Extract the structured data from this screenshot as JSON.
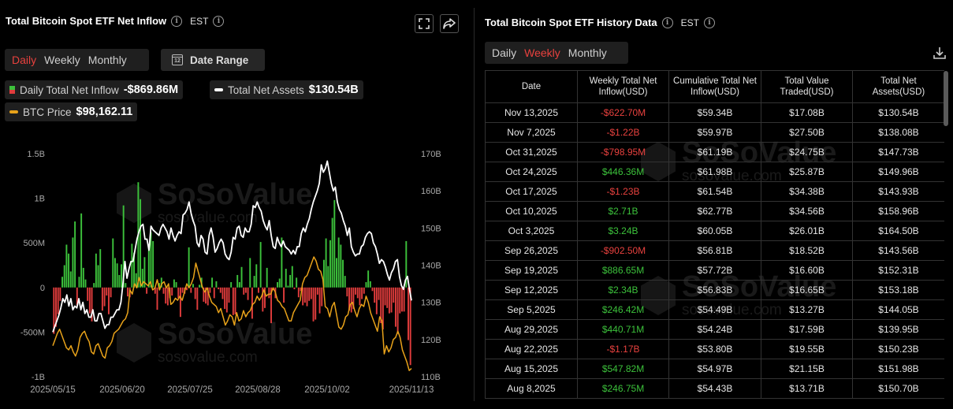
{
  "left_panel": {
    "title": "Total Bitcoin Spot ETF Net Inflow",
    "timezone": "EST",
    "period_tabs": [
      {
        "label": "Daily",
        "active": true
      },
      {
        "label": "Weekly",
        "active": false
      },
      {
        "label": "Monthly",
        "active": false
      }
    ],
    "date_range_label": "Date Range",
    "date_range_icon_text": "12",
    "legend": {
      "inflow": {
        "label": "Daily Total Net Inflow",
        "value": "-$869.86M"
      },
      "assets": {
        "label": "Total Net Assets",
        "value": "$130.54B"
      },
      "btc": {
        "label": "BTC Price",
        "value": "$98,162.11"
      }
    },
    "icons": [
      "expand-icon",
      "share-icon",
      "info-icon"
    ]
  },
  "right_panel": {
    "title": "Total Bitcoin Spot ETF History Data",
    "timezone": "EST",
    "period_tabs": [
      {
        "label": "Daily",
        "active": false
      },
      {
        "label": "Weekly",
        "active": true
      },
      {
        "label": "Monthly",
        "active": false
      }
    ],
    "columns": [
      "Date",
      "Weekly Total Net Inflow(USD)",
      "Cumulative Total Net Inflow(USD)",
      "Total Value Traded(USD)",
      "Total Net Assets(USD)"
    ],
    "rows": [
      [
        "Nov 13,2025",
        "-$622.70M",
        "$59.34B",
        "$17.08B",
        "$130.54B"
      ],
      [
        "Nov 7,2025",
        "-$1.22B",
        "$59.97B",
        "$27.50B",
        "$138.08B"
      ],
      [
        "Oct 31,2025",
        "-$798.95M",
        "$61.19B",
        "$24.75B",
        "$147.73B"
      ],
      [
        "Oct 24,2025",
        "$446.36M",
        "$61.98B",
        "$25.87B",
        "$149.96B"
      ],
      [
        "Oct 17,2025",
        "-$1.23B",
        "$61.54B",
        "$34.38B",
        "$143.93B"
      ],
      [
        "Oct 10,2025",
        "$2.71B",
        "$62.77B",
        "$34.56B",
        "$158.96B"
      ],
      [
        "Oct 3,2025",
        "$3.24B",
        "$60.05B",
        "$26.01B",
        "$164.50B"
      ],
      [
        "Sep 26,2025",
        "-$902.50M",
        "$56.81B",
        "$18.52B",
        "$143.56B"
      ],
      [
        "Sep 19,2025",
        "$886.65M",
        "$57.72B",
        "$16.60B",
        "$152.31B"
      ],
      [
        "Sep 12,2025",
        "$2.34B",
        "$56.83B",
        "$16.65B",
        "$153.18B"
      ],
      [
        "Sep 5,2025",
        "$246.42M",
        "$54.49B",
        "$13.27B",
        "$144.05B"
      ],
      [
        "Aug 29,2025",
        "$440.71M",
        "$54.24B",
        "$17.59B",
        "$139.95B"
      ],
      [
        "Aug 22,2025",
        "-$1.17B",
        "$53.80B",
        "$19.55B",
        "$150.23B"
      ],
      [
        "Aug 15,2025",
        "$547.82M",
        "$54.97B",
        "$21.15B",
        "$151.98B"
      ],
      [
        "Aug 8,2025",
        "$246.75M",
        "$54.43B",
        "$13.71B",
        "$150.70B"
      ]
    ],
    "icons": [
      "download-icon",
      "info-icon"
    ]
  },
  "watermark": {
    "brand": "SoSoValue",
    "url": "sosovalue.com"
  },
  "colors": {
    "positive": "#3cc13b",
    "negative": "#e03c3c",
    "assets_line": "#ffffff",
    "btc_line": "#e8a21a",
    "active_tab": "#e8413e"
  },
  "chart_data": {
    "type": "bar",
    "x_ticks": [
      "2025/05/15",
      "2025/06/20",
      "2025/07/25",
      "2025/08/28",
      "2025/10/02",
      "2025/11/13"
    ],
    "y_left_ticks": [
      "1.5B",
      "1B",
      "500M",
      "0",
      "-500M",
      "-1B"
    ],
    "y_left_range": [
      -1000,
      1500
    ],
    "y_right_ticks": [
      "170B",
      "160B",
      "150B",
      "140B",
      "130B",
      "120B",
      "110B"
    ],
    "y_right_range": [
      110,
      170
    ],
    "series": [
      {
        "name": "Daily Total Net Inflow",
        "unit": "M USD",
        "values": [
          -520,
          -440,
          -300,
          -150,
          120,
          250,
          480,
          380,
          180,
          560,
          740,
          -200,
          120,
          830,
          220,
          90,
          -150,
          -290,
          -380,
          50,
          380,
          250,
          430,
          -260,
          -210,
          -90,
          -300,
          -110,
          550,
          330,
          270,
          140,
          260,
          920,
          50,
          -100,
          -110,
          490,
          390,
          160,
          1180,
          990,
          210,
          340,
          -70,
          450,
          620,
          520,
          -70,
          -250,
          50,
          110,
          -70,
          -180,
          -200,
          -120,
          -90,
          90,
          60,
          -120,
          -330,
          -60,
          -70,
          -30,
          450,
          -60,
          40,
          -130,
          -250,
          30,
          110,
          -160,
          -180,
          -200,
          -60,
          110,
          -120,
          70,
          -20,
          -60,
          -130,
          -240,
          -280,
          -170,
          60,
          -310,
          -300,
          140,
          60,
          230,
          -80,
          -60,
          -140,
          330,
          -350,
          130,
          260,
          -60,
          510,
          -270,
          -230,
          220,
          -120,
          -400,
          -30,
          -120,
          60,
          100,
          560,
          -170,
          210,
          20,
          140,
          240,
          -20,
          110,
          -110,
          -40,
          -200,
          -170,
          -210,
          -150,
          -130,
          -380,
          -360,
          -80,
          -290,
          -210,
          310,
          550,
          240,
          530,
          780,
          980,
          330,
          560,
          480,
          310,
          130,
          -100,
          -260,
          -280,
          -240,
          -80,
          -120,
          -200,
          -130,
          -70,
          60,
          190,
          70,
          -40,
          -170,
          -300,
          -140,
          -400,
          -470,
          -200,
          -230,
          -290,
          -280,
          -170,
          -440,
          -520,
          -290,
          -270,
          -270,
          520,
          -590,
          -870
        ]
      },
      {
        "name": "Total Net Assets",
        "unit": "B USD",
        "values": [
          122,
          123.5,
          125,
          126.5,
          128.5,
          131,
          130,
          132,
          129,
          131,
          128,
          129,
          128.5,
          131,
          128,
          130,
          127,
          128,
          126,
          126,
          128,
          125,
          125,
          127,
          127,
          125,
          123,
          124,
          124,
          126,
          126,
          127,
          128,
          128,
          130,
          135,
          141,
          136.5,
          139,
          141,
          141,
          144,
          147,
          149,
          150.5,
          151,
          147,
          147,
          144,
          150.5,
          149.5,
          149,
          148.5,
          148,
          150,
          151,
          150,
          149,
          147,
          150,
          148,
          146.5,
          148,
          149,
          148.5,
          153.5,
          154,
          155,
          157,
          154,
          152,
          150.5,
          146,
          145,
          148,
          147,
          143.5,
          143,
          148,
          150,
          147.5,
          143.5,
          144.5,
          146,
          147,
          146,
          143,
          142,
          141.5,
          143.5,
          147.5,
          147,
          150,
          150.5,
          148,
          147.5,
          150,
          149,
          149,
          151,
          156,
          155.5,
          157,
          155.5,
          154.5,
          152,
          150.5,
          149.5,
          152,
          148,
          145,
          144.5,
          147.5,
          146,
          145,
          146.5,
          145,
          144.5,
          144,
          143,
          144,
          143,
          145,
          145,
          148.5,
          150,
          149,
          151,
          152.5,
          155,
          157,
          158.5,
          160,
          162,
          167,
          165,
          166,
          168,
          165,
          162,
          160,
          161,
          157,
          155,
          154,
          152,
          150.5,
          148,
          150,
          145,
          143.5,
          142.5,
          143,
          143,
          145,
          145.5,
          147.5,
          148.5,
          149,
          148.5,
          146,
          145,
          143,
          140.5,
          141.5,
          141,
          139.5,
          137.5,
          136,
          138,
          139,
          141,
          141.5,
          137,
          134.5,
          133.5,
          136,
          137,
          133.5,
          130.5
        ]
      },
      {
        "name": "BTC Price",
        "unit": "USD",
        "values": [
          103500,
          105000,
          106500,
          107500,
          106000,
          104500,
          103000,
          102500,
          103500,
          102000,
          101000,
          102500,
          105500,
          106500,
          107000,
          105500,
          104500,
          102000,
          101500,
          103500,
          104000,
          102500,
          101000,
          100500,
          103000,
          103500,
          104500,
          106500,
          107000,
          107500,
          108500,
          109500,
          110000,
          111500,
          117000,
          116000,
          118500,
          117500,
          120000,
          118000,
          119000,
          118500,
          118000,
          119000,
          117000,
          117500,
          119500,
          117000,
          118500,
          119000,
          117500,
          118500,
          113500,
          114000,
          115000,
          114500,
          115500,
          114500,
          116500,
          118500,
          117500,
          118500,
          120000,
          123500,
          121500,
          119500,
          117500,
          116500,
          117500,
          115500,
          114000,
          113500,
          113000,
          111500,
          112500,
          110500,
          108500,
          109500,
          111000,
          110500,
          108500,
          111500,
          109500,
          110000,
          112000,
          110500,
          111500,
          112000,
          113500,
          114000,
          115500,
          114500,
          115500,
          117000,
          115500,
          116000,
          116000,
          117500,
          116500,
          114500,
          114000,
          113000,
          112500,
          111000,
          109500,
          109500,
          111500,
          112500,
          113500,
          114500,
          118500,
          120000,
          120500,
          122000,
          123500,
          125000,
          124000,
          122000,
          121500,
          119500,
          113000,
          112500,
          110500,
          113000,
          114000,
          111000,
          108000,
          107500,
          108500,
          110500,
          111000,
          113500,
          114000,
          112000,
          110500,
          112500,
          113500,
          113000,
          115500,
          114000,
          111500,
          110000,
          108500,
          107000,
          110500,
          109500,
          101500,
          103500,
          102000,
          103000,
          105000,
          105500,
          107000,
          105500,
          102500,
          101000,
          99500,
          97500,
          98000
        ]
      }
    ]
  }
}
